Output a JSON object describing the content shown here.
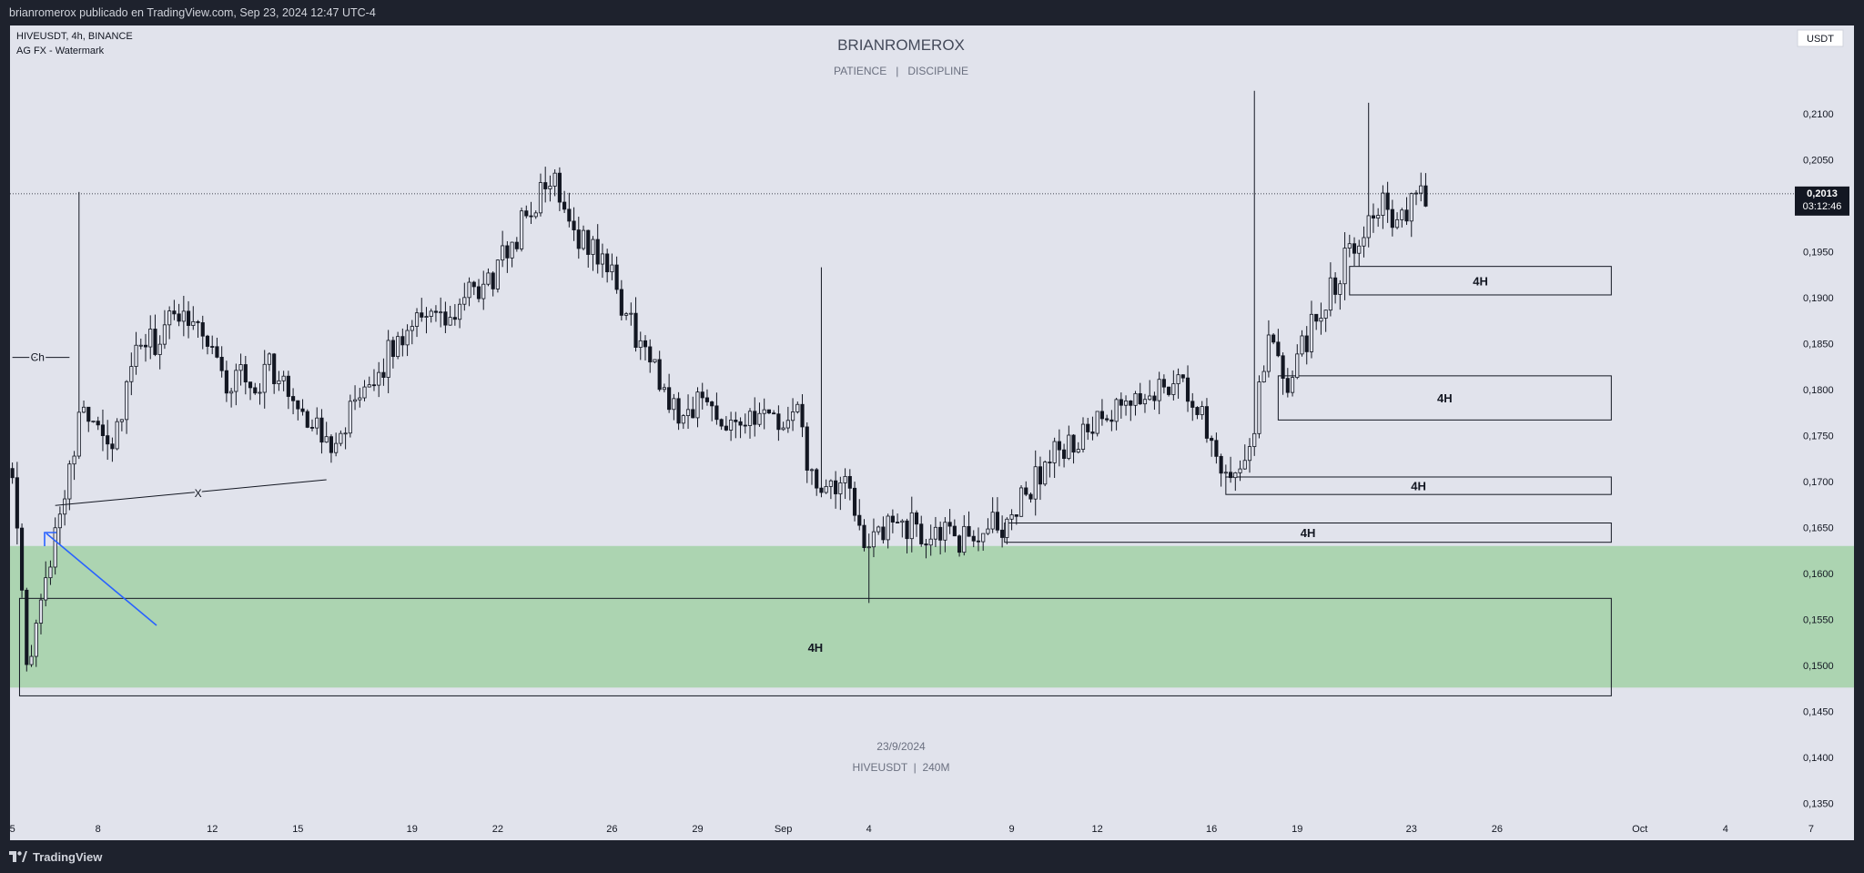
{
  "header": {
    "publish_line": "brianromerox publicado en TradingView.com, Sep 23, 2024 12:47 UTC-4"
  },
  "symbol_info": {
    "line1": "HIVEUSDT, 4h, BINANCE",
    "line2": "AG FX - Watermark"
  },
  "watermark": {
    "title": "BRIANROMEROX",
    "subtitle": "PATIENCE   |   DISCIPLINE",
    "date": "23/9/2024",
    "symbol": "HIVEUSDT  |  240M"
  },
  "currency_label": "USDT",
  "price_tag": {
    "price": "0,2013",
    "countdown": "03:12:46"
  },
  "footer": {
    "brand": "TradingView"
  },
  "colors": {
    "background": "#e1e3ec",
    "candle": "#131722",
    "zone_fill": "#a9d3ae",
    "arrow": "#2962ff"
  },
  "chart_data": {
    "type": "candlestick",
    "timeframe": "4h",
    "ylim": [
      0.131,
      0.2196
    ],
    "y_ticks": [
      "0,2100",
      "0,2050",
      "0,2000",
      "0,1950",
      "0,1900",
      "0,1850",
      "0,1800",
      "0,1750",
      "0,1700",
      "0,1650",
      "0,1600",
      "0,1550",
      "0,1500",
      "0,1450",
      "0,1400",
      "0,1350"
    ],
    "y_tick_values": [
      0.21,
      0.205,
      0.2,
      0.195,
      0.19,
      0.185,
      0.18,
      0.175,
      0.17,
      0.165,
      0.16,
      0.155,
      0.15,
      0.145,
      0.14,
      0.135
    ],
    "x_ticks": [
      {
        "label": "5",
        "date": "2024-08-05"
      },
      {
        "label": "8",
        "date": "2024-08-08"
      },
      {
        "label": "12",
        "date": "2024-08-12"
      },
      {
        "label": "15",
        "date": "2024-08-15"
      },
      {
        "label": "19",
        "date": "2024-08-19"
      },
      {
        "label": "22",
        "date": "2024-08-22"
      },
      {
        "label": "26",
        "date": "2024-08-26"
      },
      {
        "label": "29",
        "date": "2024-08-29"
      },
      {
        "label": "Sep",
        "date": "2024-09-01"
      },
      {
        "label": "4",
        "date": "2024-09-04"
      },
      {
        "label": "9",
        "date": "2024-09-09"
      },
      {
        "label": "12",
        "date": "2024-09-12"
      },
      {
        "label": "16",
        "date": "2024-09-16"
      },
      {
        "label": "19",
        "date": "2024-09-19"
      },
      {
        "label": "23",
        "date": "2024-09-23"
      },
      {
        "label": "26",
        "date": "2024-09-26"
      },
      {
        "label": "Oct",
        "date": "2024-10-01"
      },
      {
        "label": "4",
        "date": "2024-10-04"
      },
      {
        "label": "7",
        "date": "2024-10-07"
      }
    ],
    "x_range": [
      "2024-08-04 22:00",
      "2024-10-08 12:00"
    ],
    "price_path": [
      [
        "2024-08-05 00:00",
        0.172
      ],
      [
        "2024-08-05 12:00",
        0.149
      ],
      [
        "2024-08-06 00:00",
        0.156
      ],
      [
        "2024-08-06 12:00",
        0.165
      ],
      [
        "2024-08-07 00:00",
        0.172
      ],
      [
        "2024-08-07 12:00",
        0.178
      ],
      [
        "2024-08-08 00:00",
        0.177
      ],
      [
        "2024-08-08 12:00",
        0.174
      ],
      [
        "2024-08-09 00:00",
        0.18
      ],
      [
        "2024-08-09 12:00",
        0.185
      ],
      [
        "2024-08-10 00:00",
        0.185
      ],
      [
        "2024-08-10 12:00",
        0.187
      ],
      [
        "2024-08-11 00:00",
        0.189
      ],
      [
        "2024-08-11 12:00",
        0.187
      ],
      [
        "2024-08-12 00:00",
        0.185
      ],
      [
        "2024-08-12 12:00",
        0.18
      ],
      [
        "2024-08-13 00:00",
        0.182
      ],
      [
        "2024-08-13 12:00",
        0.18
      ],
      [
        "2024-08-14 00:00",
        0.183
      ],
      [
        "2024-08-14 12:00",
        0.18
      ],
      [
        "2024-08-15 00:00",
        0.179
      ],
      [
        "2024-08-15 12:00",
        0.176
      ],
      [
        "2024-08-16 00:00",
        0.174
      ],
      [
        "2024-08-16 12:00",
        0.176
      ],
      [
        "2024-08-17 00:00",
        0.178
      ],
      [
        "2024-08-17 12:00",
        0.179
      ],
      [
        "2024-08-18 00:00",
        0.183
      ],
      [
        "2024-08-18 12:00",
        0.185
      ],
      [
        "2024-08-19 00:00",
        0.188
      ],
      [
        "2024-08-19 12:00",
        0.189
      ],
      [
        "2024-08-20 00:00",
        0.187
      ],
      [
        "2024-08-20 12:00",
        0.188
      ],
      [
        "2024-08-21 00:00",
        0.19
      ],
      [
        "2024-08-21 12:00",
        0.191
      ],
      [
        "2024-08-22 00:00",
        0.193
      ],
      [
        "2024-08-22 12:00",
        0.196
      ],
      [
        "2024-08-23 00:00",
        0.199
      ],
      [
        "2024-08-23 12:00",
        0.201
      ],
      [
        "2024-08-24 00:00",
        0.203
      ],
      [
        "2024-08-24 12:00",
        0.199
      ],
      [
        "2024-08-25 00:00",
        0.196
      ],
      [
        "2024-08-25 12:00",
        0.195
      ],
      [
        "2024-08-26 00:00",
        0.192
      ],
      [
        "2024-08-26 12:00",
        0.188
      ],
      [
        "2024-08-27 00:00",
        0.185
      ],
      [
        "2024-08-27 12:00",
        0.182
      ],
      [
        "2024-08-28 00:00",
        0.179
      ],
      [
        "2024-08-28 12:00",
        0.177
      ],
      [
        "2024-08-29 00:00",
        0.179
      ],
      [
        "2024-08-29 12:00",
        0.178
      ],
      [
        "2024-08-30 00:00",
        0.177
      ],
      [
        "2024-08-30 12:00",
        0.177
      ],
      [
        "2024-08-31 00:00",
        0.176
      ],
      [
        "2024-08-31 12:00",
        0.177
      ],
      [
        "2024-09-01 00:00",
        0.176
      ],
      [
        "2024-09-01 12:00",
        0.177
      ],
      [
        "2024-09-02 00:00",
        0.17
      ],
      [
        "2024-09-02 12:00",
        0.168
      ],
      [
        "2024-09-03 00:00",
        0.17
      ],
      [
        "2024-09-03 12:00",
        0.167
      ],
      [
        "2024-09-04 00:00",
        0.163
      ],
      [
        "2024-09-04 12:00",
        0.164
      ],
      [
        "2024-09-05 00:00",
        0.166
      ],
      [
        "2024-09-05 12:00",
        0.165
      ],
      [
        "2024-09-06 00:00",
        0.164
      ],
      [
        "2024-09-06 12:00",
        0.165
      ],
      [
        "2024-09-07 00:00",
        0.163
      ],
      [
        "2024-09-07 12:00",
        0.164
      ],
      [
        "2024-09-08 00:00",
        0.165
      ],
      [
        "2024-09-08 12:00",
        0.165
      ],
      [
        "2024-09-09 00:00",
        0.166
      ],
      [
        "2024-09-09 12:00",
        0.169
      ],
      [
        "2024-09-10 00:00",
        0.171
      ],
      [
        "2024-09-10 12:00",
        0.173
      ],
      [
        "2024-09-11 00:00",
        0.174
      ],
      [
        "2024-09-11 12:00",
        0.175
      ],
      [
        "2024-09-12 00:00",
        0.176
      ],
      [
        "2024-09-12 12:00",
        0.177
      ],
      [
        "2024-09-13 00:00",
        0.178
      ],
      [
        "2024-09-13 12:00",
        0.179
      ],
      [
        "2024-09-14 00:00",
        0.18
      ],
      [
        "2024-09-14 12:00",
        0.181
      ],
      [
        "2024-09-15 00:00",
        0.18
      ],
      [
        "2024-09-15 12:00",
        0.178
      ],
      [
        "2024-09-16 00:00",
        0.175
      ],
      [
        "2024-09-16 12:00",
        0.171
      ],
      [
        "2024-09-17 00:00",
        0.172
      ],
      [
        "2024-09-17 12:00",
        0.176
      ],
      [
        "2024-09-18 00:00",
        0.186
      ],
      [
        "2024-09-18 12:00",
        0.18
      ],
      [
        "2024-09-19 00:00",
        0.183
      ],
      [
        "2024-09-19 12:00",
        0.187
      ],
      [
        "2024-09-20 00:00",
        0.19
      ],
      [
        "2024-09-20 12:00",
        0.193
      ],
      [
        "2024-09-21 00:00",
        0.196
      ],
      [
        "2024-09-21 12:00",
        0.199
      ],
      [
        "2024-09-22 00:00",
        0.201
      ],
      [
        "2024-09-22 12:00",
        0.197
      ],
      [
        "2024-09-23 00:00",
        0.2
      ],
      [
        "2024-09-23 12:00",
        0.2013
      ]
    ],
    "spikes": [
      {
        "time": "2024-08-07 08:00",
        "high": 0.2015
      },
      {
        "time": "2024-09-02 08:00",
        "high": 0.1933
      },
      {
        "time": "2024-09-04 00:00",
        "low": 0.1568
      },
      {
        "time": "2024-09-17 12:00",
        "high": 0.2125
      },
      {
        "time": "2024-09-21 12:00",
        "high": 0.2112
      }
    ],
    "zones": [
      {
        "label": "",
        "type": "filled",
        "x_start": "2024-08-04 22:00",
        "x_end": "2024-10-08 12:00",
        "top": 0.163,
        "bottom": 0.1476
      },
      {
        "label": "4H",
        "x_start": "2024-08-05 06:00",
        "x_end": "2024-09-30 00:00",
        "top": 0.1573,
        "bottom": 0.1467
      },
      {
        "label": "4H",
        "x_start": "2024-09-08 18:00",
        "x_end": "2024-09-30 00:00",
        "top": 0.1655,
        "bottom": 0.1634
      },
      {
        "label": "4H",
        "x_start": "2024-09-16 12:00",
        "x_end": "2024-09-30 00:00",
        "top": 0.1705,
        "bottom": 0.1686
      },
      {
        "label": "4H",
        "x_start": "2024-09-18 08:00",
        "x_end": "2024-09-30 00:00",
        "top": 0.1815,
        "bottom": 0.1767
      },
      {
        "label": "4H",
        "x_start": "2024-09-20 20:00",
        "x_end": "2024-09-30 00:00",
        "top": 0.1934,
        "bottom": 0.1903
      }
    ],
    "annotations": [
      {
        "text": "Ch",
        "type": "level",
        "x_start": "2024-08-05 00:00",
        "x_end": "2024-08-07 00:00",
        "y": 0.1835
      },
      {
        "text": "X",
        "type": "trendline",
        "start": [
          "2024-08-06 12:00",
          0.1674
        ],
        "end": [
          "2024-08-16 00:00",
          0.1702
        ]
      }
    ],
    "last_price": 0.2013
  }
}
